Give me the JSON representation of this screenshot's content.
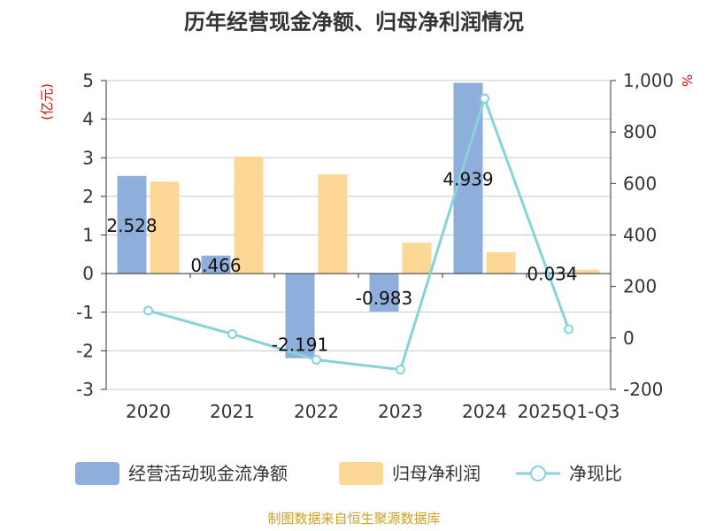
{
  "chart_data": {
    "type": "bar",
    "title": "历年经营现金净额、归母净利润情况",
    "categories": [
      "2020",
      "2021",
      "2022",
      "2023",
      "2024",
      "2025Q1-Q3"
    ],
    "series": [
      {
        "name": "经营活动现金流净额",
        "kind": "bar",
        "axis": "left",
        "color": "#8eaedc",
        "values": [
          2.528,
          0.466,
          -2.191,
          -0.983,
          4.939,
          0.034
        ],
        "data_labels": [
          "2.528",
          "0.466",
          "-2.191",
          "-0.983",
          "4.939",
          "0.034"
        ]
      },
      {
        "name": "归母净利润",
        "kind": "bar",
        "axis": "left",
        "color": "#fdd796",
        "values": [
          2.38,
          3.03,
          2.57,
          0.8,
          0.55,
          0.1
        ]
      },
      {
        "name": "净现比",
        "kind": "line",
        "axis": "right",
        "color": "#86d3dc",
        "values": [
          106,
          15,
          -85,
          -123,
          930,
          34
        ]
      }
    ],
    "y_left": {
      "unit": "(亿元)",
      "ylim": [
        -3,
        5
      ],
      "ticks": [
        "5",
        "4",
        "3",
        "2",
        "1",
        "0",
        "-1",
        "-2",
        "-3"
      ]
    },
    "y_right": {
      "unit": "%",
      "ylim": [
        -200,
        1000
      ],
      "ticks": [
        "1,000",
        "800",
        "600",
        "400",
        "200",
        "0",
        "-200"
      ]
    },
    "grid": true,
    "legend_position": "bottom"
  },
  "source": "制图数据来自恒生聚源数据库"
}
